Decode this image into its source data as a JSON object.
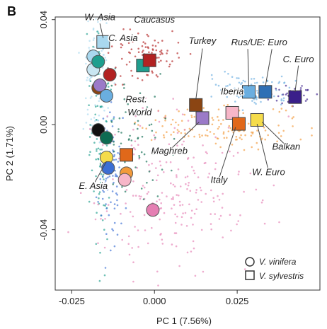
{
  "panel_label": "B",
  "chart_data": {
    "type": "scatter",
    "xlabel": "PC 1 (7.56%)",
    "ylabel": "PC 2 (1.71%)",
    "xlim": [
      -0.03,
      0.05
    ],
    "ylim": [
      -0.063,
      0.041
    ],
    "xticks": [
      -0.025,
      0.0,
      0.025
    ],
    "yticks": [
      -0.04,
      0.0,
      0.04
    ],
    "xtick_labels": [
      "-0.025",
      "0.000",
      "0.025"
    ],
    "ytick_labels": [
      "-0.04",
      "0.00",
      "0.04"
    ],
    "grid": false,
    "legend_position": "bottom-right",
    "legend": [
      {
        "label": "V. vinifera",
        "shape": "circle"
      },
      {
        "label": "V. sylvestris",
        "shape": "square"
      }
    ],
    "groups": [
      {
        "label": "W. Asia",
        "color": "#a9d8ef",
        "shape": "square",
        "x": -0.0155,
        "y": 0.031,
        "label_x": -0.018,
        "label_y": 0.0395
      },
      {
        "label": "C. Asia",
        "color": "#1f9e8e",
        "shape": "square",
        "x": -0.0035,
        "y": 0.023,
        "label_x": -0.011,
        "label_y": 0.032
      },
      {
        "label": "Caucasus",
        "color": "#b22222",
        "shape": "square",
        "x": -0.0015,
        "y": 0.025,
        "label_x": -0.005,
        "label_y": 0.0385
      },
      {
        "label": "Turkey",
        "color": "#8b4513",
        "shape": "square",
        "x": 0.0125,
        "y": 0.008,
        "label_x": 0.011,
        "label_y": 0.031
      },
      {
        "label": "Iberia",
        "color": "#f7b6c8",
        "shape": "square",
        "x": 0.0235,
        "y": 0.005,
        "label_x": 0.0215,
        "label_y": 0.0115
      },
      {
        "label": "Rus/Ukr",
        "color": "#6aaee0",
        "shape": "square",
        "x": 0.0285,
        "y": 0.0125,
        "label_x": 0.025,
        "label_y": 0.029
      },
      {
        "label": "E. Euro",
        "color": "#2f6fb5",
        "shape": "square",
        "x": 0.0335,
        "y": 0.0125,
        "label_x": 0.0305,
        "label_y": 0.031
      },
      {
        "label": "C. Euro",
        "color": "#3a1f8a",
        "shape": "square",
        "x": 0.0425,
        "y": 0.01,
        "label_x": 0.0375,
        "label_y": 0.024
      },
      {
        "label": "Maghreb",
        "color": "#9b7ac8",
        "shape": "square",
        "x": 0.014,
        "y": 0.002,
        "label_x": 0.003,
        "label_y": -0.011
      },
      {
        "label": "Italy",
        "color": "#e0681a",
        "shape": "square",
        "x": 0.0255,
        "y": 0.0005,
        "label_x": 0.0185,
        "label_y": -0.022
      },
      {
        "label": "W. Euro",
        "color": "#f5dc4b",
        "shape": "square",
        "x": 0.031,
        "y": 0.002,
        "label_x": 0.031,
        "label_y": -0.019
      },
      {
        "label": "Balkan",
        "color": "#f39a3a",
        "shape": "square",
        "x": 0.037,
        "y": -0.001,
        "label_x": 0.0385,
        "label_y": -0.009
      },
      {
        "label": "Rest World",
        "color": "#9e9e9e",
        "shape": "circle",
        "x": -0.013,
        "y": 0.007,
        "label_x": -0.0075,
        "label_y": 0.009
      },
      {
        "label": "E. Asia",
        "color": "#3b6fd4",
        "shape": "circle",
        "x": -0.013,
        "y": -0.017,
        "label_x": -0.0195,
        "label_y": -0.024
      },
      {
        "label": "",
        "color": "#e57fb3",
        "shape": "circle",
        "x": -0.0005,
        "y": -0.033,
        "label_x": 0,
        "label_y": 0
      }
    ],
    "markers": [
      {
        "shape": "circle",
        "color": "#a9d8ef",
        "x": -0.0185,
        "y": 0.026
      },
      {
        "shape": "circle",
        "color": "#c9e6f2",
        "x": -0.0185,
        "y": 0.021
      },
      {
        "shape": "circle",
        "color": "#1f9e8e",
        "x": -0.017,
        "y": 0.024
      },
      {
        "shape": "circle",
        "color": "#b22222",
        "x": -0.0135,
        "y": 0.019
      },
      {
        "shape": "circle",
        "color": "#8b4513",
        "x": -0.017,
        "y": 0.014
      },
      {
        "shape": "circle",
        "color": "#9b7ac8",
        "x": -0.0165,
        "y": 0.015
      },
      {
        "shape": "circle",
        "color": "#6aaee0",
        "x": -0.0145,
        "y": 0.011
      },
      {
        "shape": "circle",
        "color": "#111111",
        "x": -0.017,
        "y": -0.002
      },
      {
        "shape": "circle",
        "color": "#0e6b52",
        "x": -0.0145,
        "y": -0.005
      },
      {
        "shape": "square",
        "color": "#e0681a",
        "x": -0.0085,
        "y": -0.0115
      },
      {
        "shape": "circle",
        "color": "#f5dc4b",
        "x": -0.0145,
        "y": -0.0125
      },
      {
        "shape": "circle",
        "color": "#3b6fd4",
        "x": -0.014,
        "y": -0.0165
      },
      {
        "shape": "circle",
        "color": "#f39a3a",
        "x": -0.0085,
        "y": -0.0185
      },
      {
        "shape": "circle",
        "color": "#f7b6c8",
        "x": -0.009,
        "y": -0.021
      },
      {
        "shape": "circle",
        "color": "#e57fb3",
        "x": -0.0005,
        "y": -0.0325
      },
      {
        "shape": "square",
        "color": "#a9d8ef",
        "x": -0.0155,
        "y": 0.0315
      },
      {
        "shape": "square",
        "color": "#1f9e8e",
        "x": -0.0035,
        "y": 0.0225
      },
      {
        "shape": "square",
        "color": "#b22222",
        "x": -0.0015,
        "y": 0.0245
      },
      {
        "shape": "square",
        "color": "#8b4513",
        "x": 0.0125,
        "y": 0.0075
      },
      {
        "shape": "square",
        "color": "#9b7ac8",
        "x": 0.0145,
        "y": 0.0025
      },
      {
        "shape": "square",
        "color": "#f7b6c8",
        "x": 0.0235,
        "y": 0.0045
      },
      {
        "shape": "square",
        "color": "#e0681a",
        "x": 0.0255,
        "y": 0.0003
      },
      {
        "shape": "square",
        "color": "#f5dc4b",
        "x": 0.031,
        "y": 0.0018
      },
      {
        "shape": "square",
        "color": "#6aaee0",
        "x": 0.0285,
        "y": 0.0125
      },
      {
        "shape": "square",
        "color": "#2f6fb5",
        "x": 0.0335,
        "y": 0.0125
      },
      {
        "shape": "square",
        "color": "#3a1f8a",
        "x": 0.0425,
        "y": 0.0105
      }
    ],
    "region_labels": [
      {
        "text": "W. Asia",
        "x": -0.0165,
        "y": 0.0398
      },
      {
        "text": "C. Asia",
        "x": -0.0095,
        "y": 0.0318
      },
      {
        "text": "Caucasus",
        "x": 0.0,
        "y": 0.0388
      },
      {
        "text": "Turkey",
        "x": 0.0145,
        "y": 0.0308
      },
      {
        "text": "Rus/Ukr",
        "x": 0.0282,
        "y": 0.0302
      },
      {
        "text": "E. Euro",
        "x": 0.0355,
        "y": 0.0302
      },
      {
        "text": "C. Euro",
        "x": 0.0435,
        "y": 0.0238
      },
      {
        "text": "Iberia",
        "x": 0.0235,
        "y": 0.0115
      },
      {
        "text": "Rest.",
        "x": -0.0055,
        "y": 0.0085
      },
      {
        "text": "World",
        "x": -0.0045,
        "y": 0.0035
      },
      {
        "text": "Maghreb",
        "x": 0.0045,
        "y": -0.0112
      },
      {
        "text": "Italy",
        "x": 0.0195,
        "y": -0.0222
      },
      {
        "text": "W. Euro",
        "x": 0.0345,
        "y": -0.0192
      },
      {
        "text": "Balkan",
        "x": 0.0398,
        "y": -0.0095
      },
      {
        "text": "E. Asia",
        "x": -0.0185,
        "y": -0.0245
      }
    ]
  }
}
